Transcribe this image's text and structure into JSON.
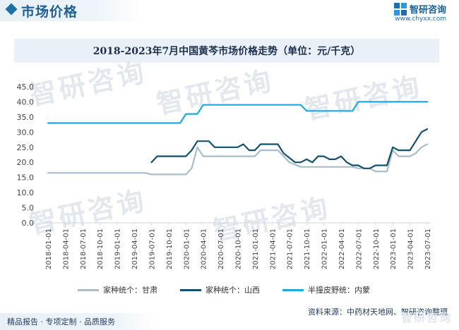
{
  "header": {
    "section_title": "市场价格",
    "brand_name": "智研咨询",
    "brand_url": "www.chyxx.com"
  },
  "watermark_text": "智研咨询",
  "colors": {
    "accent": "#1f6fa8",
    "title_box": "#e9f0f8",
    "gansu": "#a9bccb",
    "shanxi": "#12506b",
    "neimeng": "#1ea8e0"
  },
  "chart_data": {
    "type": "line",
    "title": "2018-2023年7月中国黄芩市场价格走势（单位：元/千克）",
    "xlabel": "",
    "ylabel": "",
    "ylim": [
      0,
      45
    ],
    "yticks": [
      "0.0",
      "5.0",
      "10.0",
      "15.0",
      "20.0",
      "25.0",
      "30.0",
      "35.0",
      "40.0",
      "45.0"
    ],
    "grid": false,
    "legend": "bottom",
    "x_labels": [
      "2018-01-01",
      "2018-04-01",
      "2018-07-01",
      "2018-10-01",
      "2019-01-01",
      "2019-04-01",
      "2019-07-01",
      "2019-10-01",
      "2020-01-01",
      "2020-04-01",
      "2020-07-01",
      "2020-10-01",
      "2021-01-01",
      "2021-04-01",
      "2021-07-01",
      "2021-10-01",
      "2022-01-01",
      "2022-04-01",
      "2022-07-01",
      "2022-10-01",
      "2023-01-01",
      "2023-04-01",
      "2023-07-01"
    ],
    "series": [
      {
        "name": "家种统个：甘肃",
        "color": "#a9bccb",
        "points": [
          [
            "2018-01",
            16.5
          ],
          [
            "2019-06",
            16.5
          ],
          [
            "2019-07",
            16.0
          ],
          [
            "2020-01",
            16.0
          ],
          [
            "2020-02",
            18.0
          ],
          [
            "2020-03",
            25.0
          ],
          [
            "2020-04",
            22.0
          ],
          [
            "2020-12",
            22.0
          ],
          [
            "2021-01",
            22.0
          ],
          [
            "2021-02",
            24.0
          ],
          [
            "2021-05",
            24.0
          ],
          [
            "2021-06",
            22.0
          ],
          [
            "2021-07",
            20.0
          ],
          [
            "2021-09",
            18.5
          ],
          [
            "2021-12",
            18.5
          ],
          [
            "2022-06",
            18.5
          ],
          [
            "2022-07",
            18.0
          ],
          [
            "2022-09",
            18.0
          ],
          [
            "2022-10",
            17.0
          ],
          [
            "2022-12",
            17.0
          ],
          [
            "2023-01",
            24.0
          ],
          [
            "2023-02",
            22.0
          ],
          [
            "2023-04",
            22.0
          ],
          [
            "2023-05",
            23.0
          ],
          [
            "2023-06",
            25.0
          ],
          [
            "2023-07",
            26.0
          ]
        ]
      },
      {
        "name": "家种统个：山西",
        "color": "#12506b",
        "points": [
          [
            "2019-07",
            20.0
          ],
          [
            "2019-08",
            22.0
          ],
          [
            "2020-01",
            22.0
          ],
          [
            "2020-02",
            24.0
          ],
          [
            "2020-03",
            27.0
          ],
          [
            "2020-05",
            27.0
          ],
          [
            "2020-06",
            25.0
          ],
          [
            "2020-10",
            25.0
          ],
          [
            "2020-11",
            26.0
          ],
          [
            "2020-12",
            24.0
          ],
          [
            "2021-01",
            24.0
          ],
          [
            "2021-02",
            26.0
          ],
          [
            "2021-05",
            26.0
          ],
          [
            "2021-06",
            23.0
          ],
          [
            "2021-08",
            20.0
          ],
          [
            "2021-09",
            20.0
          ],
          [
            "2021-10",
            21.0
          ],
          [
            "2021-11",
            20.0
          ],
          [
            "2021-12",
            22.0
          ],
          [
            "2022-01",
            22.0
          ],
          [
            "2022-02",
            21.0
          ],
          [
            "2022-03",
            21.0
          ],
          [
            "2022-04",
            22.0
          ],
          [
            "2022-05",
            20.0
          ],
          [
            "2022-06",
            19.0
          ],
          [
            "2022-07",
            19.0
          ],
          [
            "2022-08",
            18.0
          ],
          [
            "2022-09",
            18.0
          ],
          [
            "2022-10",
            19.0
          ],
          [
            "2022-12",
            19.0
          ],
          [
            "2023-01",
            25.0
          ],
          [
            "2023-02",
            24.0
          ],
          [
            "2023-04",
            24.0
          ],
          [
            "2023-05",
            27.0
          ],
          [
            "2023-06",
            30.0
          ],
          [
            "2023-07",
            31.0
          ]
        ]
      },
      {
        "name": "半撞皮野统：内蒙",
        "color": "#1ea8e0",
        "points": [
          [
            "2018-01",
            33.0
          ],
          [
            "2019-12",
            33.0
          ],
          [
            "2020-01",
            36.0
          ],
          [
            "2020-03",
            36.0
          ],
          [
            "2020-04",
            39.0
          ],
          [
            "2021-09",
            39.0
          ],
          [
            "2021-10",
            37.0
          ],
          [
            "2022-06",
            37.0
          ],
          [
            "2022-07",
            40.0
          ],
          [
            "2023-07",
            40.0
          ]
        ]
      }
    ]
  },
  "source": "资料来源：中药材天地网、智研咨询整理",
  "tagline": "精品报告 · 专项定制 · 品质服务"
}
